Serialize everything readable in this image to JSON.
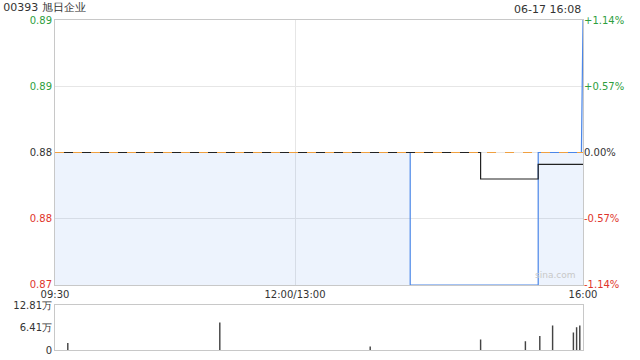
{
  "chart_data": [
    {
      "type": "line",
      "title": "00393 旭日企业",
      "subtitle": "06-17 16:08",
      "series": [
        {
          "type": "area",
          "color": "#4a86e8",
          "x": [
            0,
            222,
            222,
            302,
            302,
            329,
            330
          ],
          "values": [
            0.88,
            0.88,
            0.87,
            0.87,
            0.88,
            0.88,
            0.89
          ]
        },
        {
          "type": "line",
          "color": "#222222",
          "x": [
            0,
            266,
            266,
            302,
            302,
            330
          ],
          "values": [
            0.88,
            0.88,
            0.878,
            0.878,
            0.8791,
            0.8791
          ]
        },
        {
          "type": "line",
          "color": "#f0a040",
          "line_style": "dashed",
          "x": [
            0,
            330
          ],
          "values": [
            0.88,
            0.88
          ]
        }
      ],
      "xlim": [
        0,
        330
      ],
      "xticks": [
        {
          "value": 0,
          "label": "09:30"
        },
        {
          "value": 150,
          "label": "12:00/13:00"
        },
        {
          "value": 330,
          "label": "16:00"
        }
      ],
      "ylim": [
        0.87,
        0.89
      ],
      "yticks": [
        0.87,
        {
          "value": 0.875,
          "label": "0.88"
        },
        0.88,
        {
          "value": 0.885,
          "label": "0.89"
        },
        0.89
      ],
      "y2lim": [
        -1.14,
        1.14
      ],
      "y2ticks": [
        {
          "value": -1.14,
          "label": "-1.14%"
        },
        {
          "value": -0.57,
          "label": "-0.57%"
        },
        {
          "value": 0,
          "label": "0.00%"
        },
        {
          "value": 0.57,
          "label": "+0.57%"
        },
        {
          "value": 1.14,
          "label": "+1.14%"
        }
      ],
      "grid": true,
      "annotations": [
        {
          "text": "sina.com"
        }
      ]
    },
    {
      "type": "bar",
      "color": "#444444",
      "x": [
        8,
        103,
        197,
        266,
        294,
        303,
        311,
        324,
        326,
        328
      ],
      "values": [
        20000,
        78600,
        10000,
        30000,
        25000,
        40000,
        70000,
        50000,
        65000,
        70000
      ],
      "xlim": [
        0,
        330
      ],
      "ylim": [
        0,
        128100
      ],
      "yticks": [
        0,
        {
          "value": 64100,
          "label": "6.41万"
        },
        {
          "value": 128100,
          "label": "12.81万"
        }
      ],
      "tick_labels": "y"
    }
  ]
}
